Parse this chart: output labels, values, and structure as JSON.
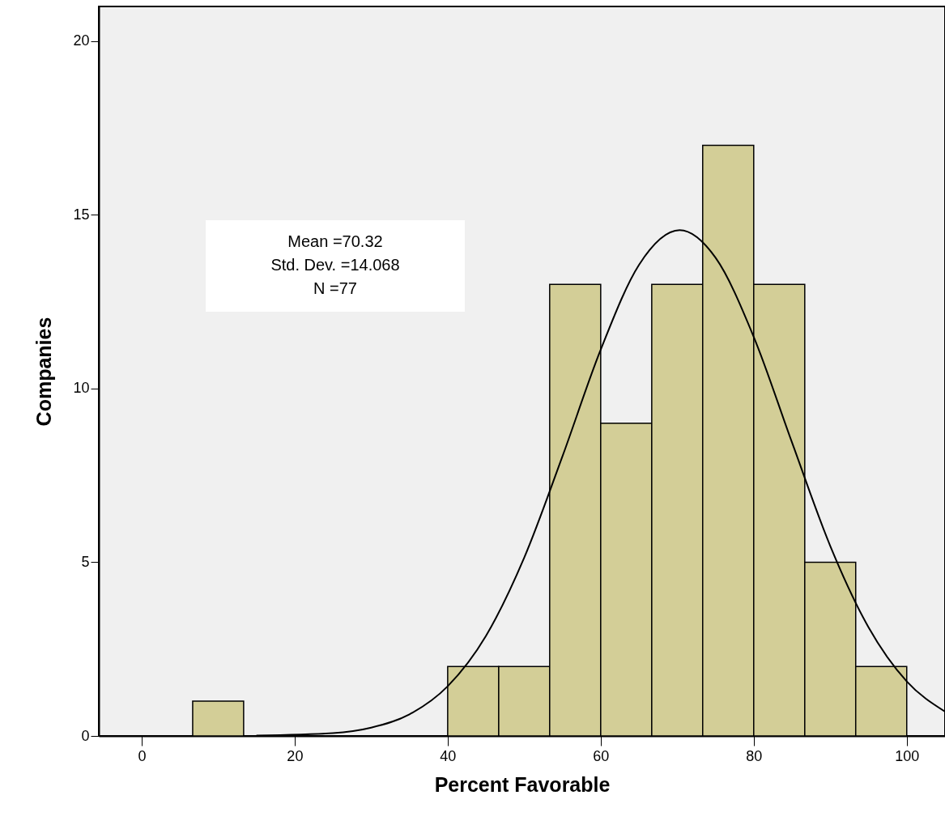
{
  "chart_data": {
    "type": "histogram",
    "xlabel": "Percent Favorable",
    "ylabel": "Companies",
    "bins": [
      0,
      6.67,
      13.33,
      20,
      26.67,
      33.33,
      40,
      46.67,
      53.33,
      60,
      66.67,
      73.33,
      80,
      86.67,
      93.33,
      100
    ],
    "series": [
      {
        "color": "#d3ce97",
        "values": [
          0,
          1,
          0,
          0,
          0,
          0,
          2,
          2,
          13,
          9,
          13,
          17,
          13,
          5,
          2
        ]
      },
      {
        "type": "line",
        "color": "#000000",
        "x": [
          15,
          25,
          30,
          35,
          40,
          45,
          50,
          55,
          60,
          65,
          70.32,
          75,
          80,
          85,
          90,
          95,
          100,
          105
        ],
        "values": [
          0.01,
          0.08,
          0.24,
          0.62,
          1.43,
          2.88,
          5.13,
          8.05,
          11.12,
          13.56,
          14.56,
          13.77,
          11.49,
          8.45,
          5.47,
          3.13,
          1.57,
          0.7
        ]
      }
    ],
    "annotations": [
      "Mean =70.32",
      "Std. Dev. =14.068",
      "N =77"
    ],
    "xlim": [
      -5.6,
      105
    ],
    "xticks": [
      0,
      20,
      40,
      60,
      80,
      100
    ],
    "ylim": [
      0,
      21
    ],
    "yticks": [
      0,
      5,
      10,
      15,
      20
    ],
    "grid": false
  }
}
